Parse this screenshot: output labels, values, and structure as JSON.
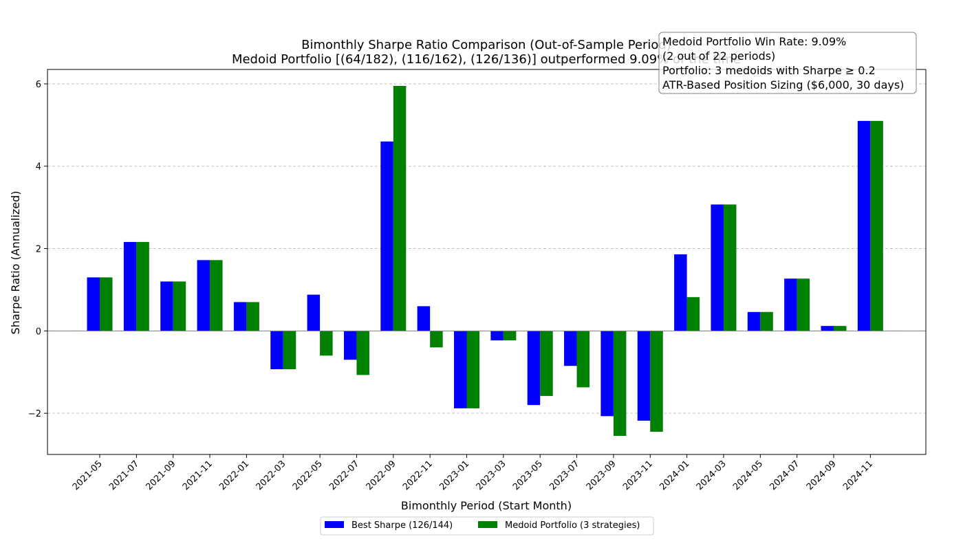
{
  "chart_data": {
    "type": "bar",
    "title": "Bimonthly Sharpe Ratio Comparison (Out-of-Sample Period)",
    "subtitle": "Medoid Portfolio [(64/182), (116/162), (126/136)] outperformed 9.09% of the time",
    "xlabel": "Bimonthly Period (Start Month)",
    "ylabel": "Sharpe Ratio (Annualized)",
    "ylim": [
      -3.0,
      6.35
    ],
    "yticks": [
      -2,
      0,
      2,
      4,
      6
    ],
    "ytick_labels": [
      "−2",
      "0",
      "2",
      "4",
      "6"
    ],
    "grid": "y-dashed",
    "legend_position": "bottom-center",
    "categories": [
      "2021-05",
      "2021-07",
      "2021-09",
      "2021-11",
      "2022-01",
      "2022-03",
      "2022-05",
      "2022-07",
      "2022-09",
      "2022-11",
      "2023-01",
      "2023-03",
      "2023-05",
      "2023-07",
      "2023-09",
      "2023-11",
      "2024-01",
      "2024-03",
      "2024-05",
      "2024-07",
      "2024-09",
      "2024-11"
    ],
    "series": [
      {
        "name": "Best Sharpe (126/144)",
        "color": "#0000ff",
        "values": [
          1.3,
          2.16,
          1.2,
          1.72,
          0.7,
          -0.93,
          0.88,
          -0.7,
          4.6,
          0.6,
          -1.88,
          -0.23,
          -1.8,
          -0.85,
          -2.07,
          -2.18,
          1.86,
          3.07,
          0.46,
          1.27,
          0.12,
          5.1
        ]
      },
      {
        "name": "Medoid Portfolio (3 strategies)",
        "color": "#008000",
        "values": [
          1.3,
          2.16,
          1.2,
          1.72,
          0.7,
          -0.93,
          -0.6,
          -1.07,
          5.95,
          -0.4,
          -1.88,
          -0.23,
          -1.58,
          -1.37,
          -2.55,
          -2.45,
          0.82,
          3.07,
          0.46,
          1.27,
          0.12,
          5.1
        ]
      }
    ],
    "annotation": {
      "lines": [
        "Medoid Portfolio Win Rate: 9.09%",
        "(2 out of 22 periods)",
        "Portfolio: 3 medoids with Sharpe ≥ 0.2",
        "ATR-Based Position Sizing ($6,000, 30 days)"
      ],
      "position": "top-right"
    }
  }
}
